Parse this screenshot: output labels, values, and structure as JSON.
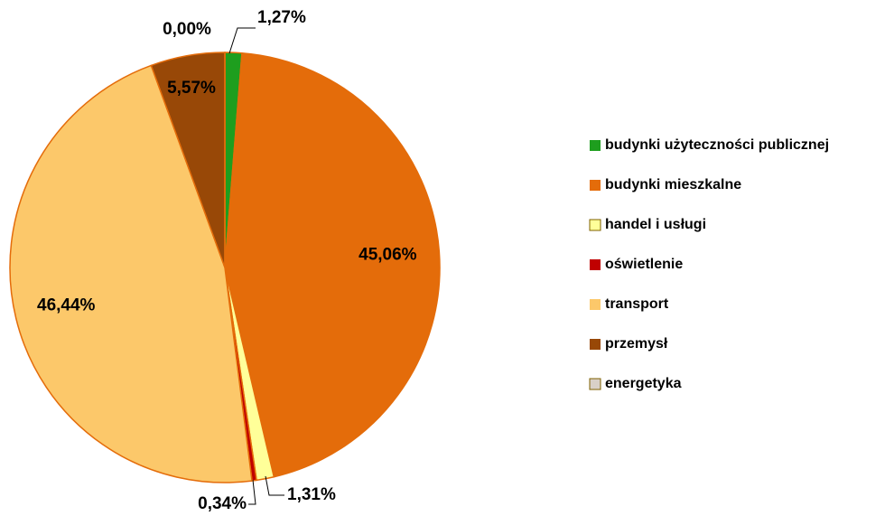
{
  "chart_data": {
    "type": "pie",
    "categories": [
      "budynki użyteczności publicznej",
      "budynki mieszkalne",
      "handel i usługi",
      "oświetlenie",
      "transport",
      "przemysł",
      "energetyka"
    ],
    "values": [
      1.27,
      45.06,
      1.31,
      0.34,
      46.44,
      5.57,
      0.0
    ],
    "value_labels": [
      "1,27%",
      "45,06%",
      "1,31%",
      "0,34%",
      "46,44%",
      "5,57%",
      "0,00%"
    ],
    "colors": [
      "#1e9e1e",
      "#e46c0a",
      "#ffff99",
      "#c00000",
      "#fcc86a",
      "#984807",
      "#d9d0c8"
    ],
    "legend": "right"
  }
}
